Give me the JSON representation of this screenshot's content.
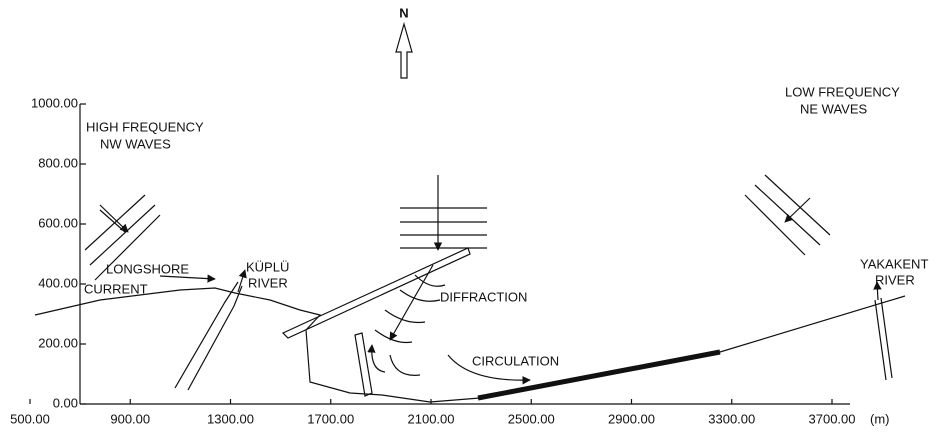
{
  "north": "N",
  "axes": {
    "yticks": [
      {
        "value": 0,
        "label": "0.00"
      },
      {
        "value": 200,
        "label": "200.00"
      },
      {
        "value": 400,
        "label": "400.00"
      },
      {
        "value": 600,
        "label": "600.00"
      },
      {
        "value": 800,
        "label": "800.00"
      },
      {
        "value": 1000,
        "label": "1000.00"
      }
    ],
    "xticks": [
      {
        "value": 500,
        "label": "500.00"
      },
      {
        "value": 900,
        "label": "900.00"
      },
      {
        "value": 1300,
        "label": "1300.00"
      },
      {
        "value": 1700,
        "label": "1700.00"
      },
      {
        "value": 2100,
        "label": "2100.00"
      },
      {
        "value": 2500,
        "label": "2500.00"
      },
      {
        "value": 2900,
        "label": "2900.00"
      },
      {
        "value": 3300,
        "label": "3300.00"
      },
      {
        "value": 3700,
        "label": "3700.00"
      }
    ],
    "xunit": "(m)"
  },
  "labels": {
    "high_frequency": [
      "HIGH FREQUENCY",
      "NW WAVES"
    ],
    "low_frequency": [
      "LOW FREQUENCY",
      "NE WAVES"
    ],
    "longshore": [
      "LONGSHORE",
      "CURRENT"
    ],
    "kuplu": [
      "KÜPLÜ",
      "RIVER"
    ],
    "yakakent": [
      "YAKAKENT",
      "RIVER"
    ],
    "diffraction": "DIFFRACTION",
    "circulation": "CIRCULATION"
  }
}
